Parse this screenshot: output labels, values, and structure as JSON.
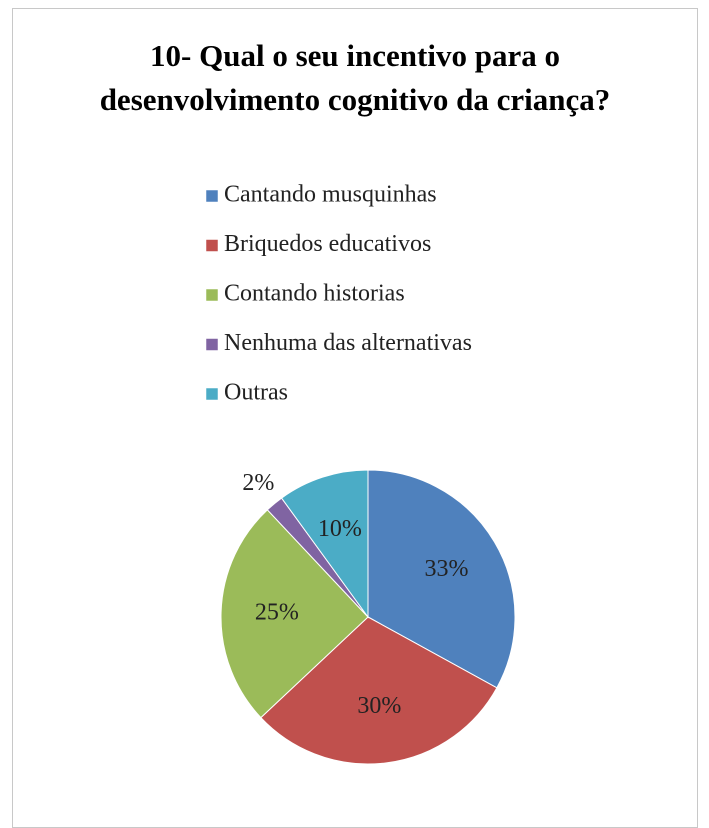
{
  "chart_data": {
    "type": "pie",
    "title": "10- Qual o seu incentivo para o desenvolvimento cognitivo da criança?",
    "categories": [
      "Cantando musquinhas",
      "Briquedos educativos",
      "Contando historias",
      "Nenhuma das alternativas",
      "Outras"
    ],
    "values": [
      33,
      30,
      25,
      2,
      10
    ],
    "value_labels": [
      "33%",
      "30%",
      "25%",
      "2%",
      "10%"
    ],
    "colors": [
      "#4f81bd",
      "#c0504d",
      "#9bbb59",
      "#8064a2",
      "#4bacc6"
    ],
    "legend": "top"
  }
}
